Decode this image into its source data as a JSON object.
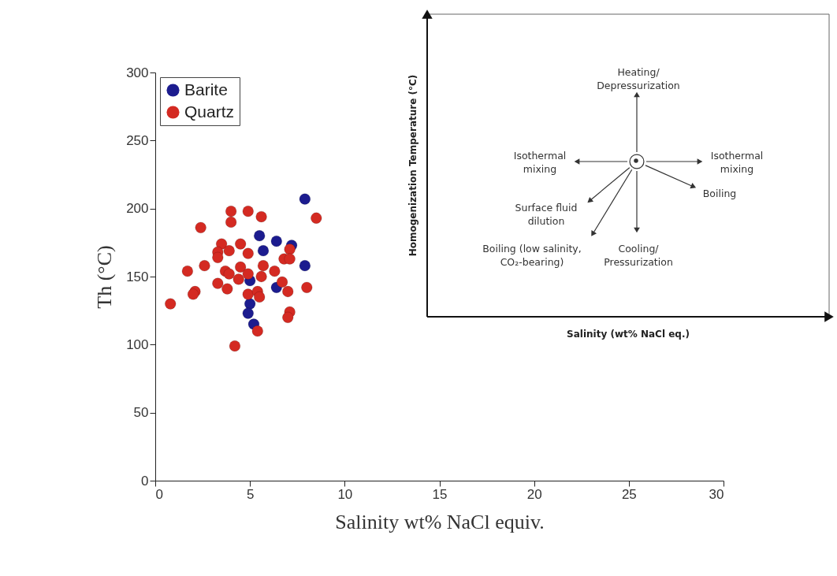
{
  "chart_data": [
    {
      "type": "scatter",
      "xlabel": "Salinity wt% NaCl equiv.",
      "ylabel": "Th (°C)",
      "xlim": [
        0,
        30
      ],
      "ylim": [
        0,
        300
      ],
      "xticks": [
        0,
        5,
        10,
        15,
        20,
        25,
        30
      ],
      "yticks": [
        0,
        50,
        100,
        150,
        200,
        250,
        300
      ],
      "grid": false,
      "legend": "top left",
      "marker": "circle",
      "series": [
        {
          "name": "Barite",
          "color": "#1c1c8f",
          "x": [
            7.9,
            5.5,
            6.4,
            7.2,
            5.7,
            7.9,
            5.0,
            6.4,
            5.0,
            4.9,
            5.2
          ],
          "values": [
            207,
            180,
            176,
            173,
            169,
            158,
            147,
            142,
            130,
            123,
            115
          ]
        },
        {
          "name": "Quartz",
          "color": "#d42a22",
          "x": [
            4.0,
            4.9,
            5.6,
            4.0,
            2.4,
            8.5,
            3.5,
            4.5,
            3.3,
            3.9,
            4.9,
            7.1,
            6.8,
            7.1,
            3.3,
            1.7,
            2.6,
            3.7,
            3.9,
            4.5,
            4.9,
            5.7,
            5.6,
            6.3,
            4.4,
            3.3,
            3.8,
            6.7,
            7.0,
            8.0,
            2.1,
            2.0,
            0.8,
            4.9,
            5.4,
            5.5,
            7.1,
            7.0,
            5.4,
            4.2
          ],
          "values": [
            198,
            198,
            194,
            190,
            186,
            193,
            174,
            174,
            168,
            169,
            167,
            170,
            163,
            163,
            164,
            154,
            158,
            154,
            152,
            157,
            152,
            158,
            150,
            154,
            148,
            145,
            141,
            146,
            139,
            142,
            139,
            137,
            130,
            137,
            139,
            135,
            124,
            120,
            110,
            99
          ]
        }
      ]
    },
    {
      "type": "other",
      "xlabel": "Salinity (wt% NaCl eq.)",
      "ylabel": "Homogenization Temperature (°C)",
      "annotations": [
        "Heating/\nDepressurization",
        "Isothermal\nmixing",
        "Isothermal\nmixing",
        "Boiling",
        "Surface fluid\ndilution",
        "Boiling (low salinity,\nCO₂-bearing)",
        "Cooling/\nPressurization"
      ]
    }
  ]
}
